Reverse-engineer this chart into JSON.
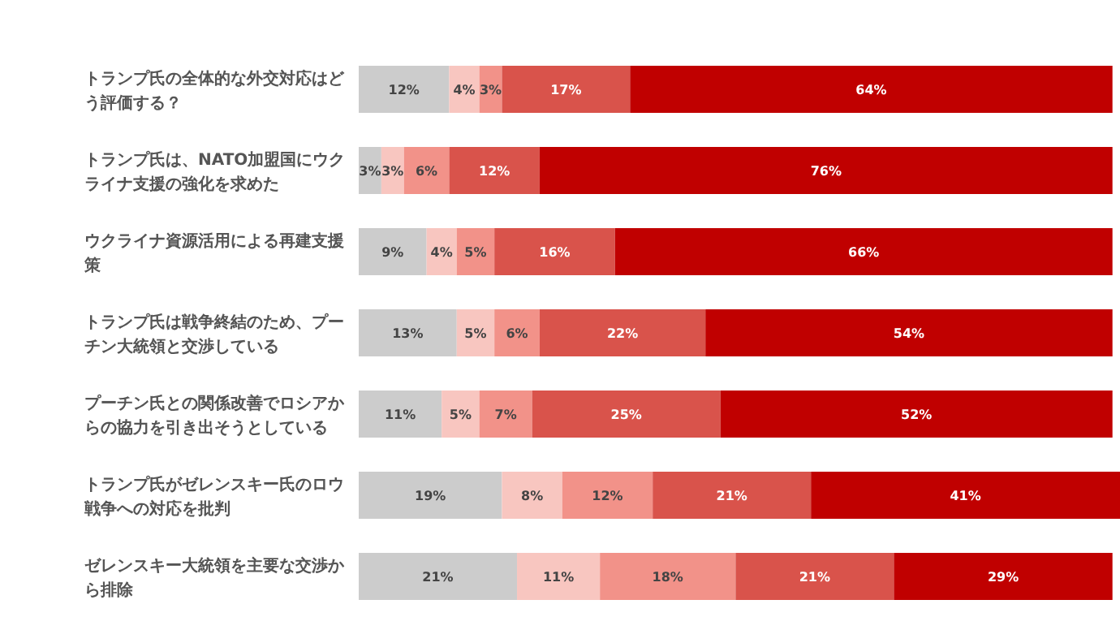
{
  "chart_data": {
    "type": "bar",
    "orientation": "horizontal",
    "stacked": true,
    "categories": [
      "トランプ氏の全体的な外交対応はどう評価する？",
      "トランプ氏は、NATO加盟国にウクライナ支援の強化を求めた",
      "ウクライナ資源活用による再建支援策",
      "トランプ氏は戦争終結のため、プーチン大統領と交渉している",
      "プーチン氏との関係改善でロシアからの協力を引き出そうとしている",
      "トランプ氏がゼレンスキー氏のロウ戦争への対応を批判",
      "ゼレンスキー大統領を主要な交渉から排除"
    ],
    "series": [
      {
        "color": "#cccccc",
        "values": [
          12,
          3,
          9,
          13,
          11,
          19,
          21
        ],
        "value_labels": [
          "12%",
          "3%",
          "9%",
          "13%",
          "11%",
          "19%",
          "21%"
        ]
      },
      {
        "color": "#f8c6c0",
        "values": [
          4,
          3,
          4,
          5,
          5,
          8,
          11
        ],
        "value_labels": [
          "4%",
          "3%",
          "4%",
          "5%",
          "5%",
          "8%",
          "11%"
        ]
      },
      {
        "color": "#f29289",
        "values": [
          3,
          6,
          5,
          6,
          7,
          12,
          18
        ],
        "value_labels": [
          "3%",
          "6%",
          "5%",
          "6%",
          "7%",
          "12%",
          "18%"
        ]
      },
      {
        "color": "#d9534b",
        "values": [
          17,
          12,
          16,
          22,
          25,
          21,
          21
        ],
        "value_labels": [
          "17%",
          "12%",
          "16%",
          "22%",
          "25%",
          "21%",
          "21%"
        ]
      },
      {
        "color": "#c00000",
        "values": [
          64,
          76,
          66,
          54,
          52,
          41,
          29
        ],
        "value_labels": [
          "64%",
          "76%",
          "66%",
          "54%",
          "52%",
          "41%",
          "29%"
        ]
      }
    ]
  }
}
